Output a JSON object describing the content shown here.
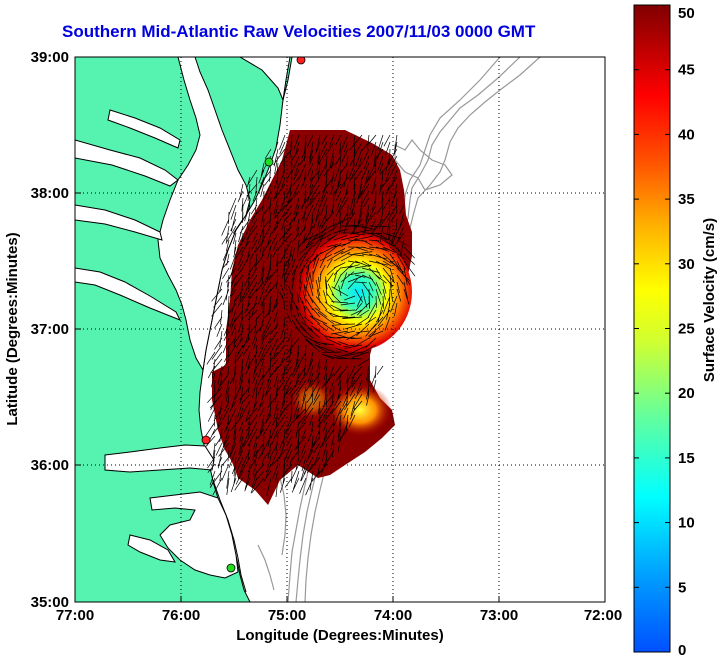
{
  "title": "Southern Mid-Atlantic Raw Velocities 2007/11/03 0000 GMT",
  "x_axis": {
    "label": "Longitude (Degrees:Minutes)",
    "ticks": [
      "77:00",
      "76:00",
      "75:00",
      "74:00",
      "73:00",
      "72:00"
    ]
  },
  "y_axis": {
    "label": "Latitude (Degrees:Minutes)",
    "ticks": [
      "39:00",
      "38:00",
      "37:00",
      "36:00",
      "35:00"
    ]
  },
  "colorbar": {
    "label": "Surface Velocity (cm/s)",
    "ticks": [
      "50",
      "45",
      "40",
      "35",
      "30",
      "25",
      "20",
      "15",
      "10",
      "5",
      "0"
    ],
    "range": [
      0,
      50
    ]
  },
  "colors": {
    "land": "#55f2b0",
    "title": "#0000e0",
    "coast_line": "#000000",
    "bathymetry": "#999999",
    "station_green": "#22dd22",
    "station_red": "#ff2020"
  },
  "map": {
    "lon_range": [
      -77,
      -72
    ],
    "lat_range": [
      35,
      39
    ],
    "grid": true,
    "stations": [
      {
        "color": "red",
        "lon": -74.87,
        "lat": 38.98
      },
      {
        "color": "green",
        "lon": -75.18,
        "lat": 38.23
      },
      {
        "color": "red",
        "lon": -75.72,
        "lat": 36.18
      },
      {
        "color": "green",
        "lon": -75.47,
        "lat": 35.23
      }
    ]
  }
}
